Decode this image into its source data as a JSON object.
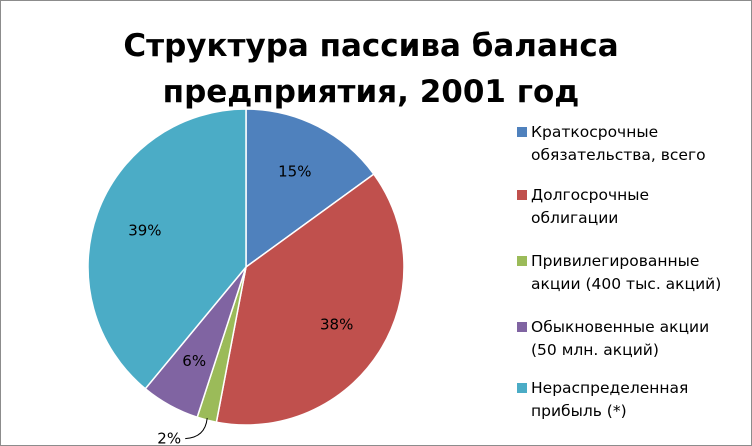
{
  "chart_data": {
    "type": "pie",
    "title_lines": [
      "Структура пассива баланса",
      "предприятия, 2001 год"
    ],
    "legend_position": "right",
    "slices": [
      {
        "label_lines": [
          "Краткосрочные",
          "обязательства, всего"
        ],
        "value": 15,
        "value_label": "15%",
        "color": "#4f81bd"
      },
      {
        "label_lines": [
          "Долгосрочные",
          "облигации"
        ],
        "value": 38,
        "value_label": "38%",
        "color": "#c0504d"
      },
      {
        "label_lines": [
          "Привилегированные",
          "акции (400 тыс. акций)"
        ],
        "value": 2,
        "value_label": "2%",
        "color": "#9bbb59"
      },
      {
        "label_lines": [
          "Обыкновенные акции",
          "(50 млн. акций)"
        ],
        "value": 6,
        "value_label": "6%",
        "color": "#8064a2"
      },
      {
        "label_lines": [
          "Нераспределенная",
          "прибыль (*)"
        ],
        "value": 39,
        "value_label": "39%",
        "color": "#4bacc6"
      }
    ]
  }
}
